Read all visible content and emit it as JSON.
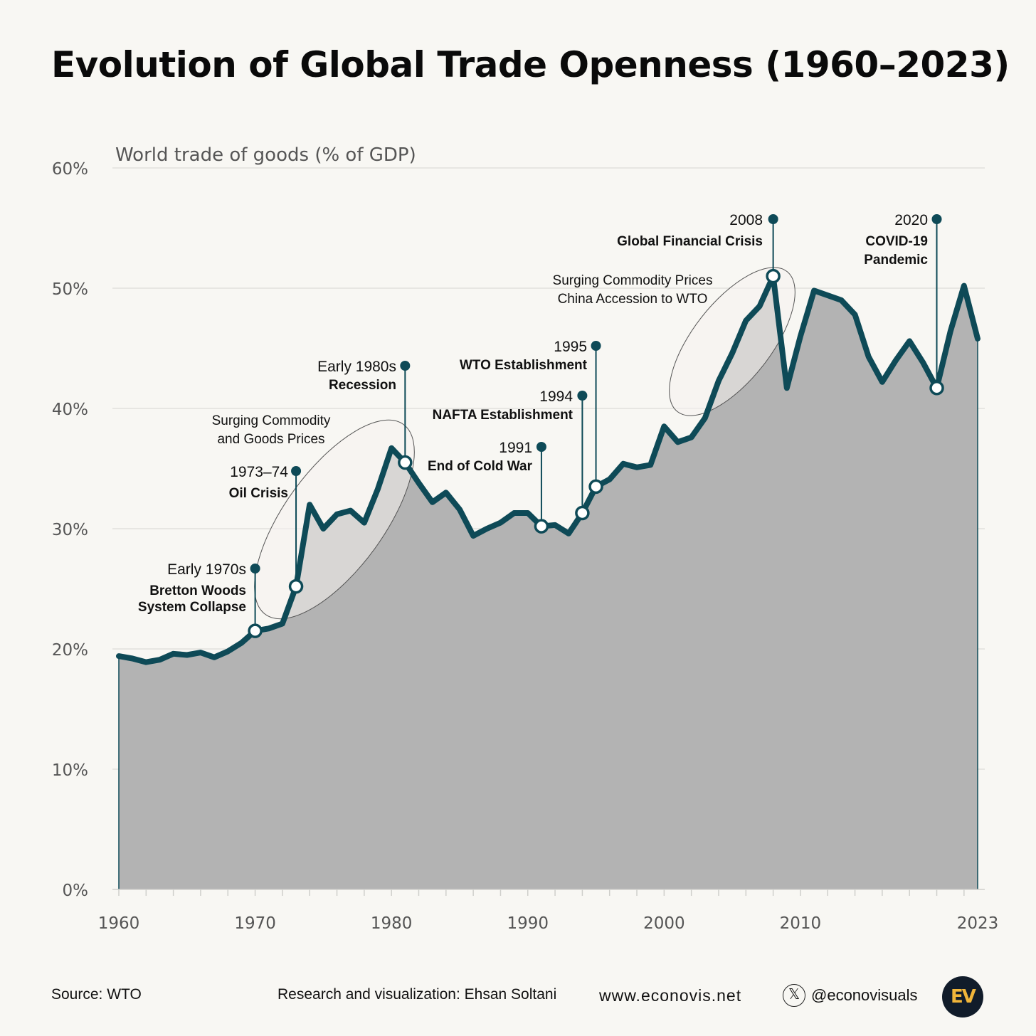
{
  "title": "Evolution of Global Trade Openness (1960–2023)",
  "footer": {
    "source": "Source: WTO",
    "credit": "Research and visualization: Ehsan Soltani",
    "site": "www.econovis.net",
    "x_icon": "x-logo-icon",
    "handle": "@econovisuals",
    "logo_text": "EV"
  },
  "colors": {
    "line": "#0e4a57",
    "area": "#b3b3b3",
    "background": "#f8f7f3"
  },
  "chart_data": {
    "type": "area",
    "title": "World trade of goods (% of GDP)",
    "ylabel": "World trade of goods (% of GDP)",
    "xlabel": "",
    "xlim": [
      1960,
      2023
    ],
    "ylim": [
      0,
      60
    ],
    "x_ticks": [
      1960,
      1970,
      1980,
      1990,
      2000,
      2010,
      2023
    ],
    "y_ticks": [
      0,
      10,
      20,
      30,
      40,
      50,
      60
    ],
    "y_tick_labels": [
      "0%",
      "10%",
      "20%",
      "30%",
      "40%",
      "50%",
      "60%"
    ],
    "series": [
      {
        "name": "World trade of goods (% of GDP)",
        "x": [
          1960,
          1961,
          1962,
          1963,
          1964,
          1965,
          1966,
          1967,
          1968,
          1969,
          1970,
          1971,
          1972,
          1973,
          1974,
          1975,
          1976,
          1977,
          1978,
          1979,
          1980,
          1981,
          1982,
          1983,
          1984,
          1985,
          1986,
          1987,
          1988,
          1989,
          1990,
          1991,
          1992,
          1993,
          1994,
          1995,
          1996,
          1997,
          1998,
          1999,
          2000,
          2001,
          2002,
          2003,
          2004,
          2005,
          2006,
          2007,
          2008,
          2009,
          2010,
          2011,
          2012,
          2013,
          2014,
          2015,
          2016,
          2017,
          2018,
          2019,
          2020,
          2021,
          2022,
          2023
        ],
        "values": [
          19.4,
          19.2,
          18.9,
          19.1,
          19.6,
          19.5,
          19.7,
          19.3,
          19.8,
          20.5,
          21.5,
          21.7,
          22.1,
          25.2,
          32.0,
          30.0,
          31.2,
          31.5,
          30.5,
          33.3,
          36.7,
          35.5,
          33.8,
          32.2,
          33.0,
          31.6,
          29.4,
          30.0,
          30.5,
          31.3,
          31.3,
          30.2,
          30.3,
          29.6,
          31.3,
          33.5,
          34.1,
          35.4,
          35.1,
          35.3,
          38.5,
          37.2,
          37.6,
          39.2,
          42.3,
          44.6,
          47.3,
          48.5,
          51.0,
          41.7,
          46.0,
          49.8,
          49.4,
          49.0,
          47.8,
          44.3,
          42.2,
          44.0,
          45.6,
          43.8,
          41.7,
          46.4,
          50.2,
          45.8
        ]
      }
    ],
    "annotations": [
      {
        "year": 1970,
        "value": 21.5,
        "label": "Early 1970s",
        "desc": [
          "Bretton Woods",
          "System Collapse"
        ]
      },
      {
        "year": 1973,
        "value": 25.2,
        "label": "1973–74",
        "desc": [
          "Oil Crisis"
        ]
      },
      {
        "year": 1981,
        "value": 35.5,
        "label": "Early 1980s",
        "desc": [
          "Recession"
        ]
      },
      {
        "year": 1991,
        "value": 30.2,
        "label": "1991",
        "desc": [
          "End of Cold War"
        ]
      },
      {
        "year": 1994,
        "value": 31.3,
        "label": "1994",
        "desc": [
          "NAFTA Establishment"
        ]
      },
      {
        "year": 1995,
        "value": 33.5,
        "label": "1995",
        "desc": [
          "WTO Establishment"
        ]
      },
      {
        "year": 2008,
        "value": 51.0,
        "label": "2008",
        "desc": [
          "Global Financial Crisis"
        ]
      },
      {
        "year": 2020,
        "value": 41.7,
        "label": "2020",
        "desc": [
          "COVID-19",
          "Pandemic"
        ]
      }
    ],
    "highlights": [
      {
        "label": [
          "Surging Commodity",
          "and Goods Prices"
        ],
        "range": [
          1973,
          1981
        ]
      },
      {
        "label": [
          "Surging Commodity Prices",
          "China Accession to WTO"
        ],
        "range": [
          2003,
          2008
        ]
      }
    ]
  }
}
